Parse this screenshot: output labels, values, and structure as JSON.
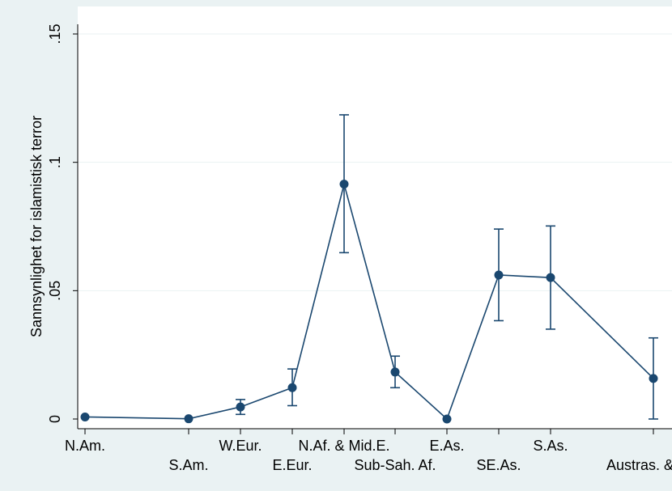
{
  "chart_data": {
    "type": "line",
    "title": "",
    "xlabel": "",
    "ylabel": "Sannsynlighet for islamistisk terror",
    "ylim": [
      0,
      0.15
    ],
    "yticks": [
      {
        "value": 0,
        "label": "0"
      },
      {
        "value": 0.05,
        "label": ".05"
      },
      {
        "value": 0.1,
        "label": ".1"
      },
      {
        "value": 0.15,
        "label": ".15"
      }
    ],
    "grid": true,
    "categories": [
      {
        "label": "N.Am.",
        "row": 0
      },
      {
        "label": "S.Am.",
        "row": 1
      },
      {
        "label": "W.Eur.",
        "row": 0
      },
      {
        "label": "E.Eur.",
        "row": 1
      },
      {
        "label": "N.Af. & Mid.E.",
        "row": 0
      },
      {
        "label": "Sub-Sah. Af.",
        "row": 1
      },
      {
        "label": "E.As.",
        "row": 0
      },
      {
        "label": "SE.As.",
        "row": 1
      },
      {
        "label": "S.As.",
        "row": 0
      },
      {
        "label": "Austras. & Oc.",
        "row": 1
      }
    ],
    "series": [
      {
        "values": [
          0.0008,
          0.0001,
          0.0047,
          0.0122,
          0.0915,
          0.0183,
          0.0,
          0.0561,
          0.0551,
          0.0158
        ],
        "ci_lower": [
          null,
          null,
          0.0018,
          0.0052,
          0.0648,
          0.0122,
          null,
          0.0383,
          0.035,
          0.0
        ],
        "ci_upper": [
          null,
          null,
          0.0076,
          0.0195,
          0.1185,
          0.0245,
          null,
          0.074,
          0.0752,
          0.0316
        ]
      }
    ]
  },
  "colors": {
    "background": "#eaf2f3",
    "plot_area": "#ffffff",
    "series": "#1a476f",
    "grid": "#eaf2f3",
    "axis": "#000000"
  }
}
